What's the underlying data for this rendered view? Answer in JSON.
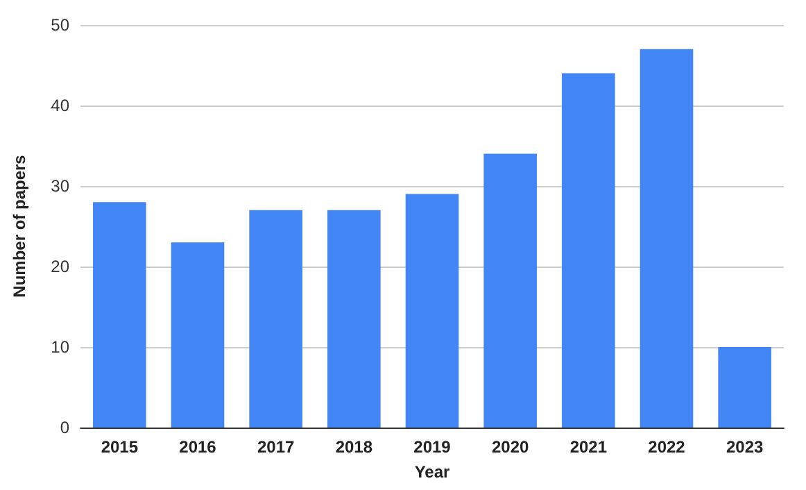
{
  "chart_data": {
    "type": "bar",
    "xlabel": "Year",
    "ylabel": "Number of papers",
    "categories": [
      "2015",
      "2016",
      "2017",
      "2018",
      "2019",
      "2020",
      "2021",
      "2022",
      "2023"
    ],
    "values": [
      28,
      23,
      27,
      27,
      29,
      34,
      44,
      47,
      10
    ],
    "color": "#4285f4",
    "ylim": [
      0,
      50
    ],
    "yticks": [
      0,
      10,
      20,
      30,
      40,
      50
    ],
    "grid": "y"
  }
}
